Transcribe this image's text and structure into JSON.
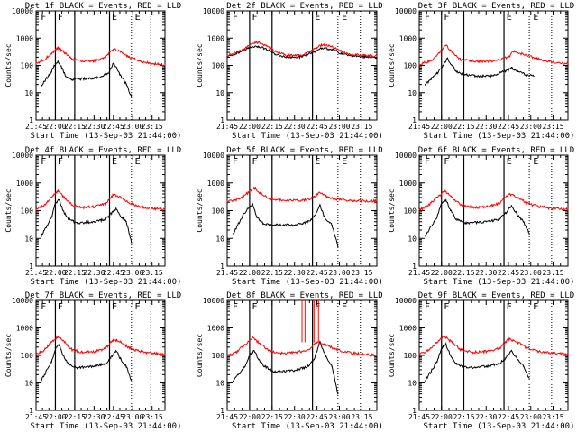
{
  "figure": {
    "ylabel": "Counts/sec",
    "xlabel": "Start Time (13-Sep-03 21:44:00)",
    "x_tick_labels": [
      "21:45",
      "22:00",
      "22:15",
      "22:30",
      "22:45",
      "23:00",
      "23:15"
    ],
    "y_tick_labels": [
      "1",
      "10",
      "100",
      "1000",
      "10000"
    ],
    "legend_note": "BLACK = Events, RED = LLD",
    "colors": {
      "events": "#000000",
      "lld": "#ff0000",
      "axes": "#000000",
      "background": "#ffffff"
    },
    "markers": [
      "F",
      "F",
      "E",
      "E"
    ]
  },
  "chart_data": [
    {
      "type": "line",
      "title": "Det 1f BLACK = Events, RED = LLD",
      "xlim_minutes": [
        0,
        100
      ],
      "ylim": [
        1,
        10000
      ],
      "yscale": "log",
      "series": [
        {
          "name": "Events",
          "color": "#000000",
          "x": [
            4,
            12,
            14,
            17,
            20,
            23,
            28,
            35,
            45,
            52,
            57,
            60,
            66,
            70,
            74
          ],
          "values": [
            18,
            60,
            100,
            140,
            80,
            40,
            30,
            32,
            35,
            40,
            60,
            120,
            40,
            20,
            7
          ]
        },
        {
          "name": "LLD",
          "color": "#ff0000",
          "x": [
            0,
            6,
            12,
            17,
            22,
            28,
            35,
            45,
            53,
            60,
            66,
            72,
            80,
            88,
            95,
            100
          ],
          "values": [
            120,
            160,
            280,
            450,
            300,
            170,
            140,
            150,
            190,
            400,
            320,
            200,
            150,
            120,
            110,
            105
          ]
        }
      ]
    },
    {
      "type": "line",
      "title": "Det 2f BLACK = Events, RED = LLD",
      "xlim_minutes": [
        0,
        100
      ],
      "ylim": [
        1,
        10000
      ],
      "yscale": "log",
      "series": [
        {
          "name": "Events",
          "color": "#000000",
          "x": [
            0,
            8,
            14,
            20,
            26,
            32,
            40,
            50,
            57,
            63,
            70,
            76,
            84,
            92,
            100
          ],
          "values": [
            220,
            300,
            420,
            500,
            400,
            260,
            200,
            210,
            300,
            420,
            400,
            280,
            220,
            210,
            200
          ]
        },
        {
          "name": "LLD",
          "color": "#ff0000",
          "x": [
            0,
            8,
            14,
            20,
            26,
            32,
            40,
            50,
            57,
            63,
            70,
            76,
            84,
            92,
            100
          ],
          "values": [
            230,
            330,
            520,
            700,
            560,
            320,
            230,
            240,
            360,
            560,
            520,
            330,
            250,
            230,
            220
          ]
        }
      ]
    },
    {
      "type": "line",
      "title": "Det 3f BLACK = Events, RED = LLD",
      "xlim_minutes": [
        0,
        100
      ],
      "ylim": [
        1,
        10000
      ],
      "yscale": "log",
      "series": [
        {
          "name": "Events",
          "color": "#000000",
          "x": [
            4,
            12,
            16,
            19,
            22,
            25,
            30,
            40,
            50,
            57,
            62,
            66,
            72,
            77
          ],
          "values": [
            20,
            50,
            100,
            180,
            100,
            60,
            45,
            40,
            42,
            60,
            80,
            60,
            45,
            40
          ]
        },
        {
          "name": "LLD",
          "color": "#ff0000",
          "x": [
            0,
            8,
            14,
            18,
            22,
            28,
            40,
            52,
            60,
            64,
            70,
            80,
            90,
            100
          ],
          "values": [
            110,
            150,
            300,
            550,
            300,
            160,
            140,
            150,
            200,
            350,
            250,
            170,
            130,
            120
          ]
        }
      ]
    },
    {
      "type": "line",
      "title": "Det 4f BLACK = Events, RED = LLD",
      "xlim_minutes": [
        0,
        100
      ],
      "ylim": [
        1,
        10000
      ],
      "yscale": "log",
      "series": [
        {
          "name": "Events",
          "color": "#000000",
          "x": [
            4,
            12,
            15,
            18,
            21,
            25,
            32,
            45,
            54,
            57,
            62,
            66,
            70,
            74
          ],
          "values": [
            12,
            60,
            180,
            240,
            100,
            50,
            35,
            40,
            50,
            70,
            120,
            60,
            40,
            7
          ]
        },
        {
          "name": "LLD",
          "color": "#ff0000",
          "x": [
            0,
            6,
            12,
            17,
            22,
            28,
            36,
            46,
            54,
            60,
            66,
            72,
            80,
            90,
            100
          ],
          "values": [
            110,
            150,
            300,
            500,
            300,
            160,
            130,
            140,
            180,
            380,
            300,
            190,
            140,
            120,
            110
          ]
        }
      ]
    },
    {
      "type": "line",
      "title": "Det 5f BLACK = Events, RED = LLD",
      "xlim_minutes": [
        0,
        100
      ],
      "ylim": [
        1,
        10000
      ],
      "yscale": "log",
      "series": [
        {
          "name": "Events",
          "color": "#000000",
          "x": [
            4,
            10,
            14,
            17,
            20,
            24,
            30,
            45,
            54,
            58,
            62,
            65,
            70,
            74
          ],
          "values": [
            15,
            60,
            120,
            160,
            60,
            35,
            30,
            30,
            40,
            60,
            150,
            60,
            30,
            5
          ]
        },
        {
          "name": "LLD",
          "color": "#ff0000",
          "x": [
            0,
            8,
            14,
            18,
            22,
            28,
            40,
            52,
            58,
            62,
            66,
            72,
            84,
            100
          ],
          "values": [
            220,
            260,
            450,
            700,
            420,
            270,
            230,
            240,
            300,
            450,
            330,
            260,
            230,
            220
          ]
        }
      ]
    },
    {
      "type": "line",
      "title": "Det 6f BLACK = Events, RED = LLD",
      "xlim_minutes": [
        0,
        100
      ],
      "ylim": [
        1,
        10000
      ],
      "yscale": "log",
      "series": [
        {
          "name": "Events",
          "color": "#000000",
          "x": [
            4,
            12,
            15,
            18,
            21,
            25,
            32,
            45,
            54,
            58,
            62,
            66,
            70,
            74
          ],
          "values": [
            12,
            60,
            180,
            250,
            100,
            50,
            35,
            40,
            50,
            80,
            150,
            70,
            40,
            15
          ]
        },
        {
          "name": "LLD",
          "color": "#ff0000",
          "x": [
            0,
            6,
            12,
            17,
            22,
            28,
            36,
            46,
            54,
            60,
            66,
            72,
            80,
            90,
            100
          ],
          "values": [
            110,
            150,
            300,
            500,
            300,
            160,
            130,
            140,
            180,
            400,
            300,
            190,
            140,
            120,
            110
          ]
        }
      ]
    },
    {
      "type": "line",
      "title": "Det 7f BLACK = Events, RED = LLD",
      "xlim_minutes": [
        0,
        100
      ],
      "ylim": [
        1,
        10000
      ],
      "yscale": "log",
      "series": [
        {
          "name": "Events",
          "color": "#000000",
          "x": [
            4,
            12,
            15,
            18,
            21,
            25,
            32,
            45,
            54,
            58,
            62,
            66,
            70,
            74
          ],
          "values": [
            12,
            60,
            180,
            240,
            100,
            50,
            35,
            40,
            50,
            80,
            150,
            70,
            40,
            12
          ]
        },
        {
          "name": "LLD",
          "color": "#ff0000",
          "x": [
            0,
            6,
            12,
            17,
            22,
            28,
            36,
            46,
            54,
            60,
            66,
            72,
            80,
            90,
            100
          ],
          "values": [
            110,
            150,
            300,
            500,
            300,
            160,
            130,
            140,
            180,
            380,
            300,
            190,
            140,
            120,
            110
          ]
        }
      ]
    },
    {
      "type": "line",
      "title": "Det 8f BLACK = Events, RED = LLD",
      "xlim_minutes": [
        0,
        100
      ],
      "ylim": [
        1,
        10000
      ],
      "yscale": "log",
      "series": [
        {
          "name": "Events",
          "color": "#000000",
          "x": [
            4,
            12,
            15,
            18,
            21,
            25,
            32,
            45,
            54,
            58,
            62,
            66,
            70,
            74
          ],
          "values": [
            12,
            40,
            100,
            150,
            70,
            40,
            25,
            28,
            40,
            70,
            300,
            90,
            40,
            4
          ]
        },
        {
          "name": "LLD",
          "color": "#ff0000",
          "x": [
            0,
            6,
            12,
            17,
            22,
            28,
            36,
            46,
            54,
            60,
            66,
            72,
            80,
            90,
            100
          ],
          "values": [
            100,
            130,
            250,
            450,
            260,
            150,
            120,
            130,
            160,
            300,
            250,
            170,
            130,
            110,
            100
          ]
        },
        {
          "name": "LLD spikes",
          "color": "#ff0000",
          "x": [
            50,
            52,
            58,
            61
          ],
          "values": [
            10000,
            10000,
            10000,
            10000
          ]
        }
      ]
    },
    {
      "type": "line",
      "title": "Det 9f BLACK = Events, RED = LLD",
      "xlim_minutes": [
        0,
        100
      ],
      "ylim": [
        1,
        10000
      ],
      "yscale": "log",
      "series": [
        {
          "name": "Events",
          "color": "#000000",
          "x": [
            4,
            12,
            15,
            18,
            21,
            25,
            32,
            45,
            54,
            58,
            62,
            66,
            70,
            74
          ],
          "values": [
            12,
            60,
            180,
            250,
            100,
            50,
            35,
            40,
            50,
            80,
            150,
            70,
            40,
            15
          ]
        },
        {
          "name": "LLD",
          "color": "#ff0000",
          "x": [
            0,
            6,
            12,
            17,
            22,
            28,
            36,
            46,
            54,
            60,
            66,
            72,
            80,
            90,
            100
          ],
          "values": [
            110,
            150,
            300,
            500,
            300,
            160,
            130,
            140,
            180,
            400,
            300,
            190,
            140,
            120,
            110
          ]
        }
      ]
    }
  ]
}
